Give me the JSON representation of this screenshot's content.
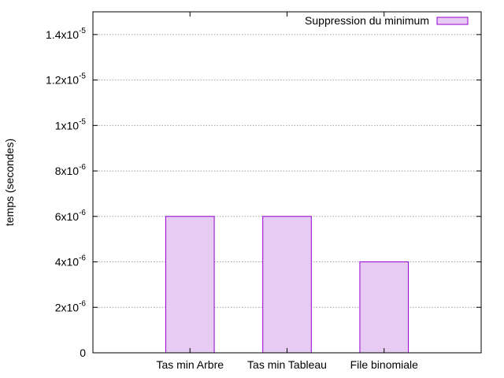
{
  "chart_data": {
    "type": "bar",
    "categories": [
      "Tas min Arbre",
      "Tas min Tableau",
      "File binomiale"
    ],
    "series": [
      {
        "name": "Suppression du minimum",
        "values": [
          6e-06,
          6e-06,
          4e-06
        ]
      }
    ],
    "xlabel": "",
    "ylabel": "temps (secondes)",
    "ylim": [
      0,
      1.5e-05
    ],
    "yticks": [
      {
        "value": 0,
        "mantissa": "0",
        "exponent": ""
      },
      {
        "value": 2e-06,
        "mantissa": "2x10",
        "exponent": "-6"
      },
      {
        "value": 4e-06,
        "mantissa": "4x10",
        "exponent": "-6"
      },
      {
        "value": 6e-06,
        "mantissa": "6x10",
        "exponent": "-6"
      },
      {
        "value": 8e-06,
        "mantissa": "8x10",
        "exponent": "-6"
      },
      {
        "value": 1e-05,
        "mantissa": "1x10",
        "exponent": "-5"
      },
      {
        "value": 1.2e-05,
        "mantissa": "1.2x10",
        "exponent": "-5"
      },
      {
        "value": 1.4e-05,
        "mantissa": "1.4x10",
        "exponent": "-5"
      }
    ],
    "grid": true,
    "legend_position": "top-right",
    "colors": {
      "bar_fill": "#e8cbf3",
      "bar_stroke": "#9400d3",
      "grid": "#a0a0a0",
      "axis": "#000000"
    }
  }
}
